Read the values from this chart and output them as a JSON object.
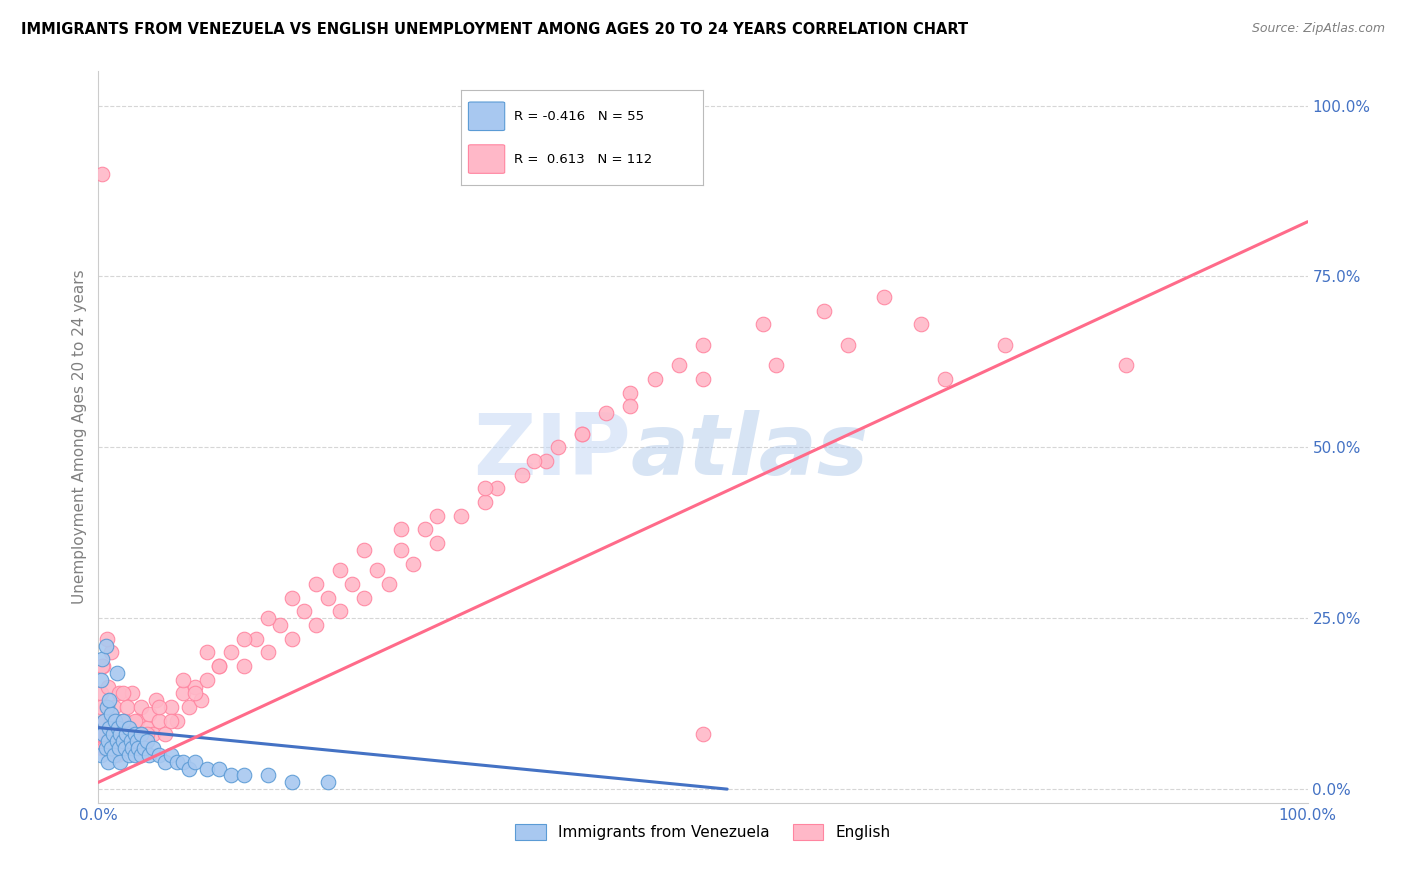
{
  "title": "IMMIGRANTS FROM VENEZUELA VS ENGLISH UNEMPLOYMENT AMONG AGES 20 TO 24 YEARS CORRELATION CHART",
  "source": "Source: ZipAtlas.com",
  "ylabel": "Unemployment Among Ages 20 to 24 years",
  "xlim": [
    0.0,
    1.0
  ],
  "ylim": [
    -0.02,
    1.05
  ],
  "ytick_positions": [
    0.0,
    0.25,
    0.5,
    0.75,
    1.0
  ],
  "xtick_positions": [
    0.0,
    0.25,
    0.5,
    0.75,
    1.0
  ],
  "xtick_labels": [
    "0.0%",
    "",
    "",
    "",
    "100.0%"
  ],
  "ytick_labels_right": [
    "0.0%",
    "25.0%",
    "50.0%",
    "75.0%",
    "100.0%"
  ],
  "legend_labels": [
    "Immigrants from Venezuela",
    "English"
  ],
  "blue_color": "#A8C8F0",
  "pink_color": "#FFB8C8",
  "blue_edge_color": "#5B9BD5",
  "pink_edge_color": "#FF85A0",
  "blue_line_color": "#4472C4",
  "pink_line_color": "#FF6B8A",
  "r_blue": -0.416,
  "n_blue": 55,
  "r_pink": 0.613,
  "n_pink": 112,
  "watermark_zip": "ZIP",
  "watermark_atlas": "atlas",
  "right_tick_color": "#4472C4",
  "axis_label_color": "#808080",
  "title_color": "#000000",
  "blue_trend_x": [
    0.0,
    0.52
  ],
  "blue_trend_y": [
    0.09,
    0.0
  ],
  "pink_trend_x": [
    0.0,
    1.0
  ],
  "pink_trend_y": [
    0.01,
    0.83
  ],
  "blue_scatter_x": [
    0.002,
    0.004,
    0.005,
    0.006,
    0.007,
    0.008,
    0.008,
    0.009,
    0.01,
    0.01,
    0.012,
    0.013,
    0.014,
    0.015,
    0.016,
    0.017,
    0.018,
    0.018,
    0.02,
    0.02,
    0.022,
    0.023,
    0.025,
    0.025,
    0.027,
    0.028,
    0.03,
    0.03,
    0.032,
    0.033,
    0.035,
    0.035,
    0.038,
    0.04,
    0.042,
    0.045,
    0.05,
    0.055,
    0.06,
    0.065,
    0.07,
    0.075,
    0.08,
    0.09,
    0.1,
    0.11,
    0.12,
    0.14,
    0.16,
    0.19,
    0.002,
    0.003,
    0.006,
    0.009,
    0.015
  ],
  "blue_scatter_y": [
    0.05,
    0.08,
    0.1,
    0.06,
    0.12,
    0.07,
    0.04,
    0.09,
    0.06,
    0.11,
    0.08,
    0.05,
    0.1,
    0.07,
    0.09,
    0.06,
    0.08,
    0.04,
    0.07,
    0.1,
    0.06,
    0.08,
    0.05,
    0.09,
    0.07,
    0.06,
    0.08,
    0.05,
    0.07,
    0.06,
    0.05,
    0.08,
    0.06,
    0.07,
    0.05,
    0.06,
    0.05,
    0.04,
    0.05,
    0.04,
    0.04,
    0.03,
    0.04,
    0.03,
    0.03,
    0.02,
    0.02,
    0.02,
    0.01,
    0.01,
    0.16,
    0.19,
    0.21,
    0.13,
    0.17
  ],
  "pink_scatter_x": [
    0.001,
    0.002,
    0.003,
    0.004,
    0.005,
    0.006,
    0.007,
    0.008,
    0.009,
    0.01,
    0.01,
    0.012,
    0.013,
    0.015,
    0.016,
    0.017,
    0.018,
    0.02,
    0.022,
    0.024,
    0.025,
    0.027,
    0.028,
    0.03,
    0.032,
    0.034,
    0.035,
    0.038,
    0.04,
    0.042,
    0.045,
    0.048,
    0.05,
    0.055,
    0.06,
    0.065,
    0.07,
    0.075,
    0.08,
    0.085,
    0.09,
    0.1,
    0.11,
    0.12,
    0.13,
    0.14,
    0.15,
    0.16,
    0.17,
    0.18,
    0.19,
    0.2,
    0.21,
    0.22,
    0.23,
    0.24,
    0.25,
    0.26,
    0.27,
    0.28,
    0.3,
    0.32,
    0.33,
    0.35,
    0.37,
    0.38,
    0.4,
    0.42,
    0.44,
    0.46,
    0.48,
    0.5,
    0.55,
    0.6,
    0.65,
    0.7,
    0.75,
    0.85,
    0.002,
    0.003,
    0.005,
    0.007,
    0.01,
    0.015,
    0.02,
    0.025,
    0.03,
    0.04,
    0.05,
    0.06,
    0.07,
    0.08,
    0.09,
    0.1,
    0.12,
    0.14,
    0.16,
    0.18,
    0.2,
    0.22,
    0.25,
    0.28,
    0.32,
    0.36,
    0.4,
    0.44,
    0.5,
    0.56,
    0.62,
    0.68,
    0.5,
    0.003
  ],
  "pink_scatter_y": [
    0.08,
    0.14,
    0.06,
    0.18,
    0.1,
    0.12,
    0.07,
    0.15,
    0.09,
    0.06,
    0.2,
    0.08,
    0.12,
    0.05,
    0.1,
    0.14,
    0.06,
    0.08,
    0.1,
    0.12,
    0.07,
    0.09,
    0.14,
    0.06,
    0.1,
    0.08,
    0.12,
    0.07,
    0.09,
    0.11,
    0.08,
    0.13,
    0.1,
    0.08,
    0.12,
    0.1,
    0.14,
    0.12,
    0.15,
    0.13,
    0.16,
    0.18,
    0.2,
    0.18,
    0.22,
    0.2,
    0.24,
    0.22,
    0.26,
    0.24,
    0.28,
    0.26,
    0.3,
    0.28,
    0.32,
    0.3,
    0.35,
    0.33,
    0.38,
    0.36,
    0.4,
    0.42,
    0.44,
    0.46,
    0.48,
    0.5,
    0.52,
    0.55,
    0.58,
    0.6,
    0.62,
    0.65,
    0.68,
    0.7,
    0.72,
    0.6,
    0.65,
    0.62,
    0.12,
    0.18,
    0.06,
    0.22,
    0.1,
    0.08,
    0.14,
    0.06,
    0.1,
    0.08,
    0.12,
    0.1,
    0.16,
    0.14,
    0.2,
    0.18,
    0.22,
    0.25,
    0.28,
    0.3,
    0.32,
    0.35,
    0.38,
    0.4,
    0.44,
    0.48,
    0.52,
    0.56,
    0.6,
    0.62,
    0.65,
    0.68,
    0.08,
    0.9
  ]
}
